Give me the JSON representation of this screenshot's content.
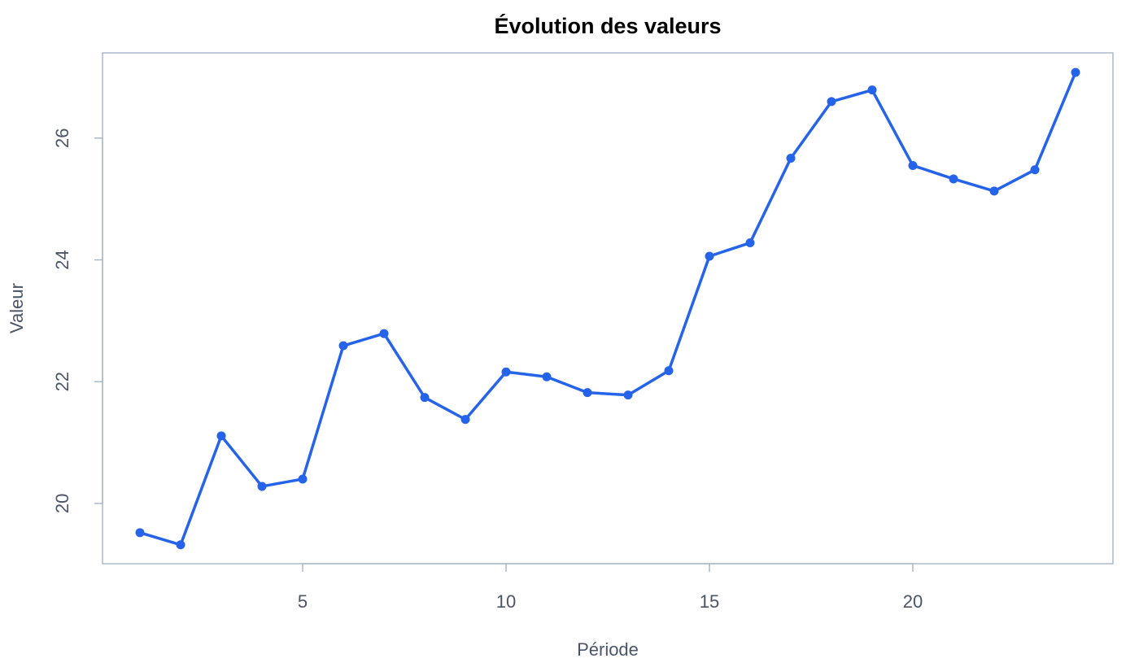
{
  "chart_data": {
    "type": "line",
    "title": "Évolution des valeurs",
    "x_label": "Période",
    "y_label": "Valeur",
    "x": [
      1,
      2,
      3,
      4,
      5,
      6,
      7,
      8,
      9,
      10,
      11,
      12,
      13,
      14,
      15,
      16,
      17,
      18,
      19,
      20,
      21,
      22,
      23,
      24
    ],
    "values": [
      19.52,
      19.32,
      21.11,
      20.28,
      20.4,
      22.59,
      22.79,
      21.74,
      21.38,
      22.16,
      22.08,
      21.82,
      21.78,
      22.18,
      24.06,
      24.28,
      25.67,
      26.6,
      26.79,
      25.55,
      25.33,
      25.13,
      25.48,
      27.08
    ],
    "color": "#2563eb",
    "xlim": [
      0.08,
      24.92
    ],
    "xticks": [
      5,
      10,
      15,
      20
    ],
    "ylim": [
      19.01,
      27.4
    ],
    "yticks": [
      20,
      22,
      24,
      26
    ]
  }
}
